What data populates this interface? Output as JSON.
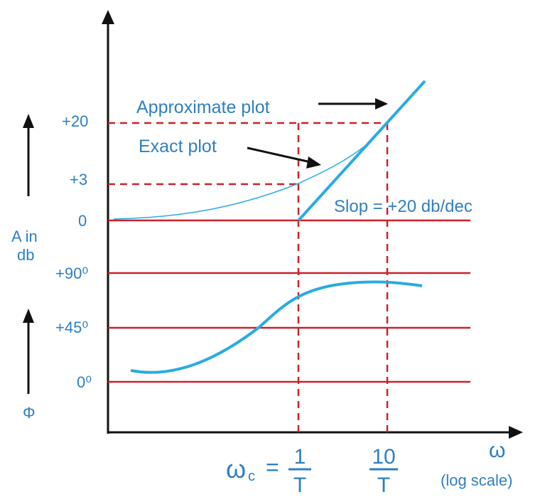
{
  "labels": {
    "approximate_plot": "Approximate plot",
    "exact_plot": "Exact plot",
    "slope": "Slop = +20 db/dec",
    "omega": "ω",
    "log_scale": "(log scale)",
    "omega_c": "ω",
    "omega_c_sub": "c",
    "equals": "=",
    "frac1_num": "1",
    "frac1_den": "T",
    "frac2_num": "10",
    "frac2_den": "T"
  },
  "magnitude_axis": {
    "label_line1": "A in",
    "label_line2": "db",
    "ticks": [
      "+20",
      "+3",
      "0"
    ]
  },
  "phase_axis": {
    "label": "Φ",
    "ticks": [
      "+90⁰",
      "+45⁰",
      "0⁰"
    ]
  },
  "colors": {
    "axis": "#111111",
    "label": "#2f7fc0",
    "curve": "#29abe2",
    "reference": "#c8232c"
  }
}
